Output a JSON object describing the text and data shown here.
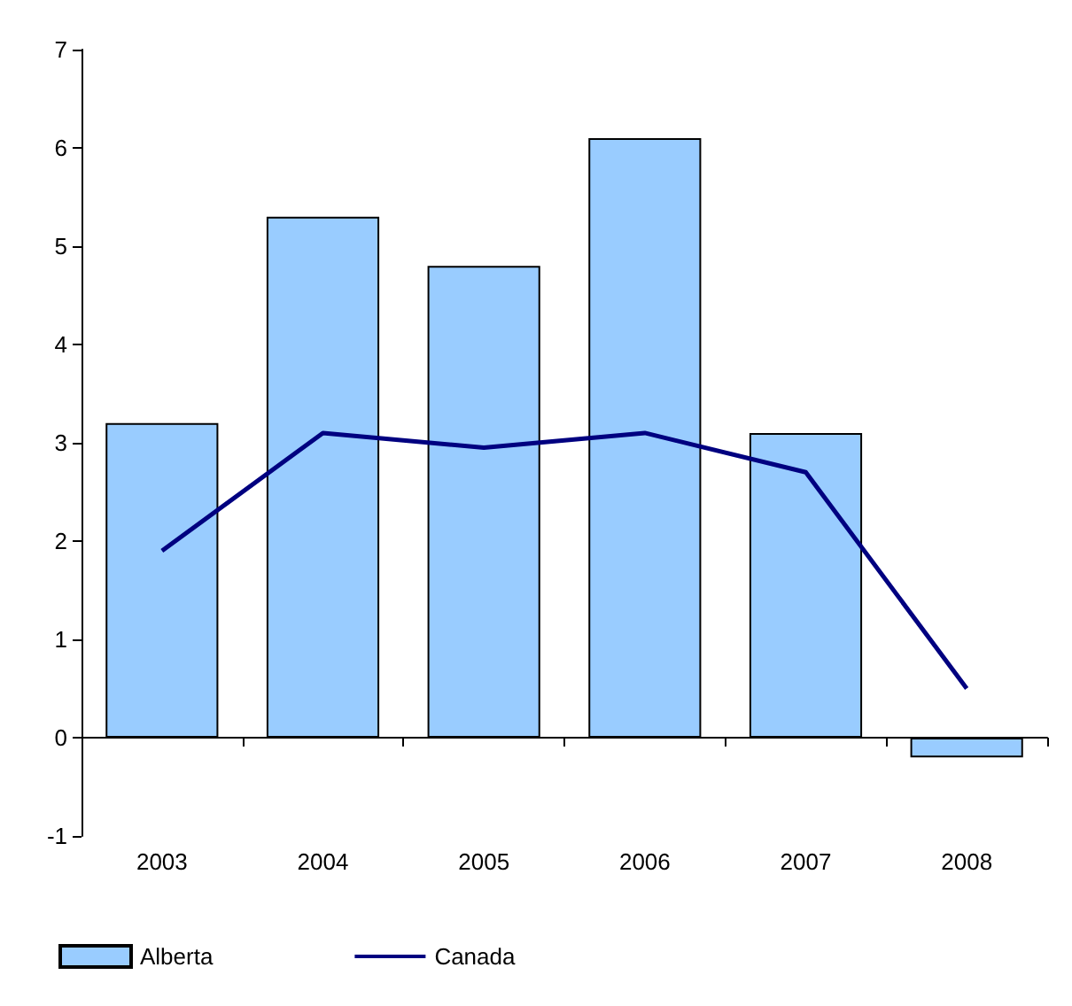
{
  "chart_data": {
    "type": "bar",
    "categories": [
      "2003",
      "2004",
      "2005",
      "2006",
      "2007",
      "2008"
    ],
    "series": [
      {
        "name": "Alberta",
        "color": "#99ccff",
        "values": [
          3.2,
          5.3,
          4.8,
          6.1,
          3.1,
          -0.2
        ]
      },
      {
        "name": "Canada",
        "type": "line",
        "color": "#000080",
        "values": [
          1.9,
          3.1,
          2.95,
          3.1,
          2.7,
          0.5
        ]
      }
    ],
    "ylim": [
      -1,
      7
    ],
    "yticks": [
      -1,
      0,
      1,
      2,
      3,
      4,
      5,
      6,
      7
    ],
    "legend": "bottom left",
    "marker": "none"
  }
}
